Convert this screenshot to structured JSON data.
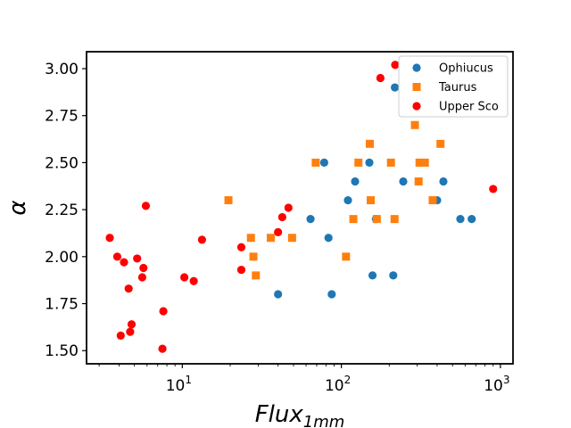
{
  "chart_data": {
    "type": "scatter",
    "title": "",
    "xlabel": "Flux",
    "xlabel_sub": "1mm",
    "ylabel": "α",
    "xscale": "log",
    "xlim": [
      2.5,
      1200
    ],
    "ylim": [
      1.43,
      3.09
    ],
    "x_ticks": [
      {
        "value": 10,
        "base": "10",
        "exp": "1"
      },
      {
        "value": 100,
        "base": "10",
        "exp": "2"
      },
      {
        "value": 1000,
        "base": "10",
        "exp": "3"
      }
    ],
    "y_ticks": [
      {
        "value": 1.5,
        "label": "1.50"
      },
      {
        "value": 1.75,
        "label": "1.75"
      },
      {
        "value": 2.0,
        "label": "2.00"
      },
      {
        "value": 2.25,
        "label": "2.25"
      },
      {
        "value": 2.5,
        "label": "2.50"
      },
      {
        "value": 2.75,
        "label": "2.75"
      },
      {
        "value": 3.0,
        "label": "3.00"
      }
    ],
    "grid": false,
    "legend_position": "top-right",
    "series": [
      {
        "name": "Ophiucus",
        "marker": "circle",
        "color": "#1f77b4",
        "points": [
          [
            40,
            1.8
          ],
          [
            64,
            2.2
          ],
          [
            78,
            2.5
          ],
          [
            83,
            2.1
          ],
          [
            87,
            1.8
          ],
          [
            110,
            2.3
          ],
          [
            122,
            2.4
          ],
          [
            150,
            2.5
          ],
          [
            157,
            1.9
          ],
          [
            165,
            2.2
          ],
          [
            212,
            1.9
          ],
          [
            217,
            2.9
          ],
          [
            245,
            2.4
          ],
          [
            400,
            2.3
          ],
          [
            438,
            2.4
          ],
          [
            560,
            2.2
          ],
          [
            660,
            2.2
          ]
        ]
      },
      {
        "name": "Taurus",
        "marker": "square",
        "color": "#ff7f0e",
        "points": [
          [
            19.5,
            2.3
          ],
          [
            27,
            2.1
          ],
          [
            28,
            2.0
          ],
          [
            29,
            1.9
          ],
          [
            36,
            2.1
          ],
          [
            49,
            2.1
          ],
          [
            69,
            2.5
          ],
          [
            107,
            2.0
          ],
          [
            119,
            2.2
          ],
          [
            128,
            2.5
          ],
          [
            151,
            2.6
          ],
          [
            153,
            2.3
          ],
          [
            167,
            2.2
          ],
          [
            205,
            2.5
          ],
          [
            216,
            2.2
          ],
          [
            290,
            2.7
          ],
          [
            306,
            2.4
          ],
          [
            310,
            2.5
          ],
          [
            335,
            2.5
          ],
          [
            375,
            2.3
          ],
          [
            420,
            2.6
          ]
        ]
      },
      {
        "name": "Upper Sco",
        "marker": "circle",
        "color": "#ff0000",
        "points": [
          [
            3.5,
            2.1
          ],
          [
            3.9,
            2.0
          ],
          [
            4.1,
            1.58
          ],
          [
            4.3,
            1.97
          ],
          [
            4.6,
            1.83
          ],
          [
            4.7,
            1.6
          ],
          [
            4.8,
            1.64
          ],
          [
            5.2,
            1.99
          ],
          [
            5.6,
            1.89
          ],
          [
            5.7,
            1.94
          ],
          [
            5.9,
            2.27
          ],
          [
            7.5,
            1.51
          ],
          [
            7.6,
            1.71
          ],
          [
            10.3,
            1.89
          ],
          [
            11.8,
            1.87
          ],
          [
            13.3,
            2.09
          ],
          [
            23.5,
            2.05
          ],
          [
            23.5,
            1.93
          ],
          [
            40,
            2.13
          ],
          [
            42.5,
            2.21
          ],
          [
            46.5,
            2.26
          ],
          [
            176,
            2.95
          ],
          [
            218,
            3.02
          ],
          [
            900,
            2.36
          ]
        ]
      }
    ]
  }
}
